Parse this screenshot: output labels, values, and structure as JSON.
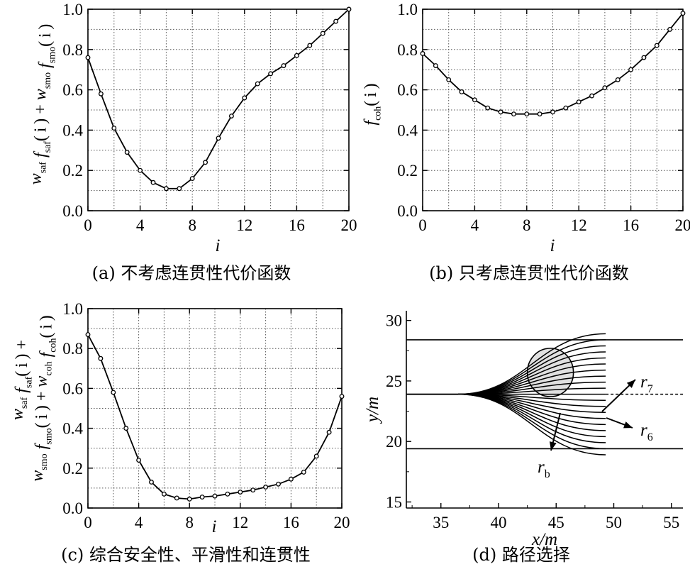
{
  "chart_data": [
    {
      "panel": "a",
      "type": "line",
      "caption": "(a) 不考虑连贯性代价函数",
      "xlabel": "i",
      "ylabel": "w_saf f_saf(i) + w_smo f_smo(i)",
      "xlim": [
        0,
        20
      ],
      "ylim": [
        0,
        1.0
      ],
      "xticks": [
        "0",
        "4",
        "8",
        "12",
        "16",
        "20"
      ],
      "yticks": [
        "0.0",
        "0.2",
        "0.4",
        "0.6",
        "0.8",
        "1.0"
      ],
      "grid": true,
      "x": [
        0,
        1,
        2,
        3,
        4,
        5,
        6,
        7,
        8,
        9,
        10,
        11,
        12,
        13,
        14,
        15,
        16,
        17,
        18,
        19,
        20
      ],
      "y": [
        0.76,
        0.58,
        0.41,
        0.29,
        0.2,
        0.14,
        0.11,
        0.11,
        0.16,
        0.24,
        0.36,
        0.47,
        0.56,
        0.63,
        0.68,
        0.72,
        0.77,
        0.82,
        0.88,
        0.94,
        1.0
      ]
    },
    {
      "panel": "b",
      "type": "line",
      "caption": "(b) 只考虑连贯性代价函数",
      "xlabel": "i",
      "ylabel": "f_coh(i)",
      "xlim": [
        0,
        20
      ],
      "ylim": [
        0,
        1.0
      ],
      "xticks": [
        "0",
        "4",
        "8",
        "12",
        "16",
        "20"
      ],
      "yticks": [
        "0.0",
        "0.2",
        "0.4",
        "0.6",
        "0.8",
        "1.0"
      ],
      "grid": true,
      "x": [
        0,
        1,
        2,
        3,
        4,
        5,
        6,
        7,
        8,
        9,
        10,
        11,
        12,
        13,
        14,
        15,
        16,
        17,
        18,
        19,
        20
      ],
      "y": [
        0.78,
        0.72,
        0.65,
        0.59,
        0.55,
        0.51,
        0.49,
        0.48,
        0.48,
        0.48,
        0.49,
        0.51,
        0.54,
        0.57,
        0.61,
        0.65,
        0.7,
        0.76,
        0.82,
        0.9,
        0.98
      ]
    },
    {
      "panel": "c",
      "type": "line",
      "caption": "(c) 综合安全性、平滑性和连贯性",
      "xlabel": "i",
      "ylabel_line1": "w_saf f_saf(i) +",
      "ylabel_line2": "w_smo f_smo(i) + w_coh f_coh(i)",
      "xlim": [
        0,
        20
      ],
      "ylim": [
        0,
        1.0
      ],
      "xticks": [
        "0",
        "4",
        "8",
        "12",
        "16",
        "20"
      ],
      "yticks": [
        "0.0",
        "0.2",
        "0.4",
        "0.6",
        "0.8",
        "1.0"
      ],
      "grid": true,
      "x": [
        0,
        1,
        2,
        3,
        4,
        5,
        6,
        7,
        8,
        9,
        10,
        11,
        12,
        13,
        14,
        15,
        16,
        17,
        18,
        19,
        20
      ],
      "y": [
        0.87,
        0.75,
        0.58,
        0.4,
        0.24,
        0.13,
        0.07,
        0.05,
        0.045,
        0.055,
        0.06,
        0.07,
        0.08,
        0.09,
        0.105,
        0.12,
        0.145,
        0.18,
        0.26,
        0.38,
        0.56
      ]
    },
    {
      "panel": "d",
      "type": "line",
      "caption": "(d) 路径选择",
      "xlabel": "x/m",
      "ylabel": "y/m",
      "xlim": [
        32,
        56
      ],
      "ylim": [
        14.5,
        30.8
      ],
      "xticks": [
        "35",
        "40",
        "45",
        "50",
        "55"
      ],
      "yticks": [
        "15",
        "20",
        "25",
        "30"
      ],
      "grid": false,
      "lane_lines_y": [
        28.4,
        19.4
      ],
      "center_line_y": 23.9,
      "path_start": [
        32,
        23.9
      ],
      "path_branch_x": 36.5,
      "path_end_x": 49.3,
      "path_end_y": [
        18.9,
        19.4,
        19.9,
        20.4,
        20.9,
        21.4,
        21.9,
        22.4,
        22.9,
        23.4,
        23.9,
        24.4,
        24.9,
        25.4,
        25.9,
        26.4,
        26.9,
        27.4,
        27.9,
        28.4,
        28.9
      ],
      "obstacle": {
        "cx": 44.5,
        "cy": 25.7,
        "r": 2.0
      },
      "annotations": [
        "r_7",
        "r_6",
        "r_b"
      ]
    }
  ]
}
